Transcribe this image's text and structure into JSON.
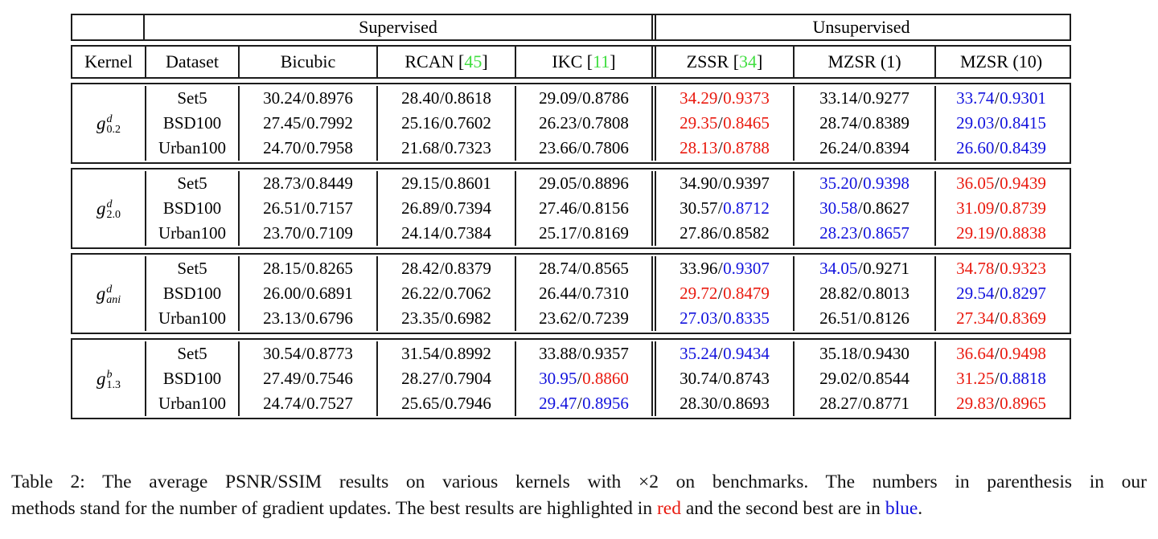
{
  "colors": {
    "k": "#000000",
    "r": "#e9190e",
    "b": "#1212dd",
    "cite": "#41de41"
  },
  "header": {
    "supervised": "Supervised",
    "unsupervised": "Unsupervised",
    "columns": [
      {
        "text": "Kernel"
      },
      {
        "text": "Dataset"
      },
      {
        "text": "Bicubic"
      },
      {
        "text": "RCAN [",
        "cite": "45",
        "close": "]"
      },
      {
        "text": "IKC [",
        "cite": "11",
        "close": "]"
      },
      {
        "text": "ZSSR [",
        "cite": "34",
        "close": "]"
      },
      {
        "text": "MZSR (1)"
      },
      {
        "text": "MZSR (10)"
      }
    ]
  },
  "groups": [
    {
      "kernel": {
        "base": "g",
        "sup": "d",
        "sub": "0.2"
      },
      "rows": [
        {
          "dataset": "Set5",
          "cells": [
            {
              "psnr": "30.24",
              "ssim": "0.8976",
              "pc": "k",
              "sc": "k"
            },
            {
              "psnr": "28.40",
              "ssim": "0.8618",
              "pc": "k",
              "sc": "k"
            },
            {
              "psnr": "29.09",
              "ssim": "0.8786",
              "pc": "k",
              "sc": "k"
            },
            {
              "psnr": "34.29",
              "ssim": "0.9373",
              "pc": "r",
              "sc": "r"
            },
            {
              "psnr": "33.14",
              "ssim": "0.9277",
              "pc": "k",
              "sc": "k"
            },
            {
              "psnr": "33.74",
              "ssim": "0.9301",
              "pc": "b",
              "sc": "b"
            }
          ]
        },
        {
          "dataset": "BSD100",
          "cells": [
            {
              "psnr": "27.45",
              "ssim": "0.7992",
              "pc": "k",
              "sc": "k"
            },
            {
              "psnr": "25.16",
              "ssim": "0.7602",
              "pc": "k",
              "sc": "k"
            },
            {
              "psnr": "26.23",
              "ssim": "0.7808",
              "pc": "k",
              "sc": "k"
            },
            {
              "psnr": "29.35",
              "ssim": "0.8465",
              "pc": "r",
              "sc": "r"
            },
            {
              "psnr": "28.74",
              "ssim": "0.8389",
              "pc": "k",
              "sc": "k"
            },
            {
              "psnr": "29.03",
              "ssim": "0.8415",
              "pc": "b",
              "sc": "b"
            }
          ]
        },
        {
          "dataset": "Urban100",
          "cells": [
            {
              "psnr": "24.70",
              "ssim": "0.7958",
              "pc": "k",
              "sc": "k"
            },
            {
              "psnr": "21.68",
              "ssim": "0.7323",
              "pc": "k",
              "sc": "k"
            },
            {
              "psnr": "23.66",
              "ssim": "0.7806",
              "pc": "k",
              "sc": "k"
            },
            {
              "psnr": "28.13",
              "ssim": "0.8788",
              "pc": "r",
              "sc": "r"
            },
            {
              "psnr": "26.24",
              "ssim": "0.8394",
              "pc": "k",
              "sc": "k"
            },
            {
              "psnr": "26.60",
              "ssim": "0.8439",
              "pc": "b",
              "sc": "b"
            }
          ]
        }
      ]
    },
    {
      "kernel": {
        "base": "g",
        "sup": "d",
        "sub": "2.0"
      },
      "rows": [
        {
          "dataset": "Set5",
          "cells": [
            {
              "psnr": "28.73",
              "ssim": "0.8449",
              "pc": "k",
              "sc": "k"
            },
            {
              "psnr": "29.15",
              "ssim": "0.8601",
              "pc": "k",
              "sc": "k"
            },
            {
              "psnr": "29.05",
              "ssim": "0.8896",
              "pc": "k",
              "sc": "k"
            },
            {
              "psnr": "34.90",
              "ssim": "0.9397",
              "pc": "k",
              "sc": "k"
            },
            {
              "psnr": "35.20",
              "ssim": "0.9398",
              "pc": "b",
              "sc": "b"
            },
            {
              "psnr": "36.05",
              "ssim": "0.9439",
              "pc": "r",
              "sc": "r"
            }
          ]
        },
        {
          "dataset": "BSD100",
          "cells": [
            {
              "psnr": "26.51",
              "ssim": "0.7157",
              "pc": "k",
              "sc": "k"
            },
            {
              "psnr": "26.89",
              "ssim": "0.7394",
              "pc": "k",
              "sc": "k"
            },
            {
              "psnr": "27.46",
              "ssim": "0.8156",
              "pc": "k",
              "sc": "k"
            },
            {
              "psnr": "30.57",
              "ssim": "0.8712",
              "pc": "k",
              "sc": "b"
            },
            {
              "psnr": "30.58",
              "ssim": "0.8627",
              "pc": "b",
              "sc": "k"
            },
            {
              "psnr": "31.09",
              "ssim": "0.8739",
              "pc": "r",
              "sc": "r"
            }
          ]
        },
        {
          "dataset": "Urban100",
          "cells": [
            {
              "psnr": "23.70",
              "ssim": "0.7109",
              "pc": "k",
              "sc": "k"
            },
            {
              "psnr": "24.14",
              "ssim": "0.7384",
              "pc": "k",
              "sc": "k"
            },
            {
              "psnr": "25.17",
              "ssim": "0.8169",
              "pc": "k",
              "sc": "k"
            },
            {
              "psnr": "27.86",
              "ssim": "0.8582",
              "pc": "k",
              "sc": "k"
            },
            {
              "psnr": "28.23",
              "ssim": "0.8657",
              "pc": "b",
              "sc": "b"
            },
            {
              "psnr": "29.19",
              "ssim": "0.8838",
              "pc": "r",
              "sc": "r"
            }
          ]
        }
      ]
    },
    {
      "kernel": {
        "base": "g",
        "sup": "d",
        "sub": "ani"
      },
      "rows": [
        {
          "dataset": "Set5",
          "cells": [
            {
              "psnr": "28.15",
              "ssim": "0.8265",
              "pc": "k",
              "sc": "k"
            },
            {
              "psnr": "28.42",
              "ssim": "0.8379",
              "pc": "k",
              "sc": "k"
            },
            {
              "psnr": "28.74",
              "ssim": "0.8565",
              "pc": "k",
              "sc": "k"
            },
            {
              "psnr": "33.96",
              "ssim": "0.9307",
              "pc": "k",
              "sc": "b"
            },
            {
              "psnr": "34.05",
              "ssim": "0.9271",
              "pc": "b",
              "sc": "k"
            },
            {
              "psnr": "34.78",
              "ssim": "0.9323",
              "pc": "r",
              "sc": "r"
            }
          ]
        },
        {
          "dataset": "BSD100",
          "cells": [
            {
              "psnr": "26.00",
              "ssim": "0.6891",
              "pc": "k",
              "sc": "k"
            },
            {
              "psnr": "26.22",
              "ssim": "0.7062",
              "pc": "k",
              "sc": "k"
            },
            {
              "psnr": "26.44",
              "ssim": "0.7310",
              "pc": "k",
              "sc": "k"
            },
            {
              "psnr": "29.72",
              "ssim": "0.8479",
              "pc": "r",
              "sc": "r"
            },
            {
              "psnr": "28.82",
              "ssim": "0.8013",
              "pc": "k",
              "sc": "k"
            },
            {
              "psnr": "29.54",
              "ssim": "0.8297",
              "pc": "b",
              "sc": "b"
            }
          ]
        },
        {
          "dataset": "Urban100",
          "cells": [
            {
              "psnr": "23.13",
              "ssim": "0.6796",
              "pc": "k",
              "sc": "k"
            },
            {
              "psnr": "23.35",
              "ssim": "0.6982",
              "pc": "k",
              "sc": "k"
            },
            {
              "psnr": "23.62",
              "ssim": "0.7239",
              "pc": "k",
              "sc": "k"
            },
            {
              "psnr": "27.03",
              "ssim": "0.8335",
              "pc": "b",
              "sc": "b"
            },
            {
              "psnr": "26.51",
              "ssim": "0.8126",
              "pc": "k",
              "sc": "k"
            },
            {
              "psnr": "27.34",
              "ssim": "0.8369",
              "pc": "r",
              "sc": "r"
            }
          ]
        }
      ]
    },
    {
      "kernel": {
        "base": "g",
        "sup": "b",
        "sub": "1.3"
      },
      "rows": [
        {
          "dataset": "Set5",
          "cells": [
            {
              "psnr": "30.54",
              "ssim": "0.8773",
              "pc": "k",
              "sc": "k"
            },
            {
              "psnr": "31.54",
              "ssim": "0.8992",
              "pc": "k",
              "sc": "k"
            },
            {
              "psnr": "33.88",
              "ssim": "0.9357",
              "pc": "k",
              "sc": "k"
            },
            {
              "psnr": "35.24",
              "ssim": "0.9434",
              "pc": "b",
              "sc": "b"
            },
            {
              "psnr": "35.18",
              "ssim": "0.9430",
              "pc": "k",
              "sc": "k"
            },
            {
              "psnr": "36.64",
              "ssim": "0.9498",
              "pc": "r",
              "sc": "r"
            }
          ]
        },
        {
          "dataset": "BSD100",
          "cells": [
            {
              "psnr": "27.49",
              "ssim": "0.7546",
              "pc": "k",
              "sc": "k"
            },
            {
              "psnr": "28.27",
              "ssim": "0.7904",
              "pc": "k",
              "sc": "k"
            },
            {
              "psnr": "30.95",
              "ssim": "0.8860",
              "pc": "b",
              "sc": "r"
            },
            {
              "psnr": "30.74",
              "ssim": "0.8743",
              "pc": "k",
              "sc": "k"
            },
            {
              "psnr": "29.02",
              "ssim": "0.8544",
              "pc": "k",
              "sc": "k"
            },
            {
              "psnr": "31.25",
              "ssim": "0.8818",
              "pc": "r",
              "sc": "b"
            }
          ]
        },
        {
          "dataset": "Urban100",
          "cells": [
            {
              "psnr": "24.74",
              "ssim": "0.7527",
              "pc": "k",
              "sc": "k"
            },
            {
              "psnr": "25.65",
              "ssim": "0.7946",
              "pc": "k",
              "sc": "k"
            },
            {
              "psnr": "29.47",
              "ssim": "0.8956",
              "pc": "b",
              "sc": "b"
            },
            {
              "psnr": "28.30",
              "ssim": "0.8693",
              "pc": "k",
              "sc": "k"
            },
            {
              "psnr": "28.27",
              "ssim": "0.8771",
              "pc": "k",
              "sc": "k"
            },
            {
              "psnr": "29.83",
              "ssim": "0.8965",
              "pc": "r",
              "sc": "r"
            }
          ]
        }
      ]
    }
  ],
  "caption": {
    "line1": "Table 2:  The average PSNR/SSIM results on various kernels with ×2 on benchmarks.  The numbers in parenthesis in our",
    "line2_pre": "methods stand for the number of gradient updates. The best results are highlighted in ",
    "red_word": "red",
    "line2_mid": " and the second best are in ",
    "blue_word": "blue",
    "line2_end": "."
  }
}
